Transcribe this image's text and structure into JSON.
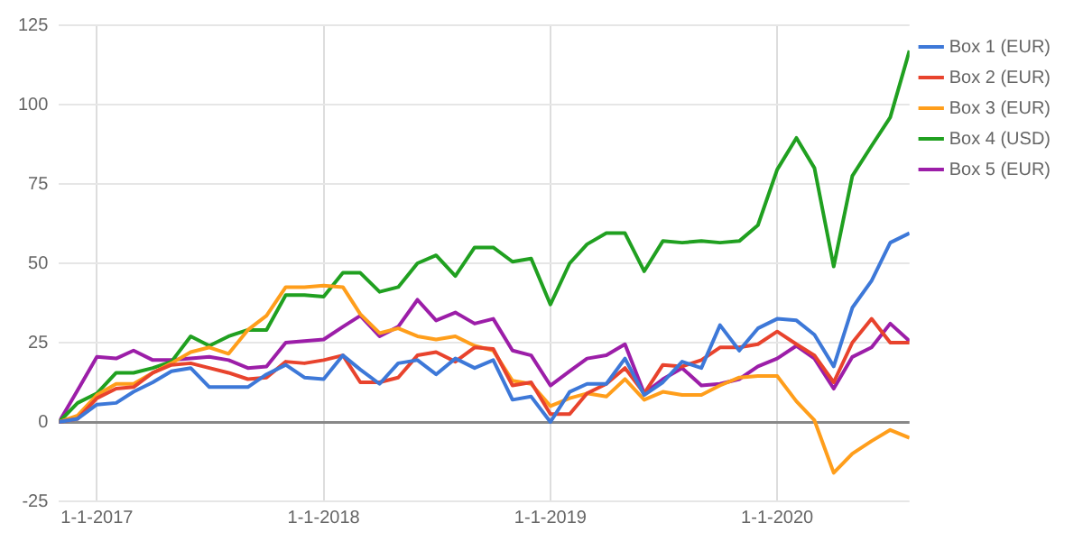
{
  "chart_data": {
    "type": "line",
    "x": [
      "2016-11",
      "2016-12",
      "2017-01",
      "2017-02",
      "2017-03",
      "2017-04",
      "2017-05",
      "2017-06",
      "2017-07",
      "2017-08",
      "2017-09",
      "2017-10",
      "2017-11",
      "2017-12",
      "2018-01",
      "2018-02",
      "2018-03",
      "2018-04",
      "2018-05",
      "2018-06",
      "2018-07",
      "2018-08",
      "2018-09",
      "2018-10",
      "2018-11",
      "2018-12",
      "2019-01",
      "2019-02",
      "2019-03",
      "2019-04",
      "2019-05",
      "2019-06",
      "2019-07",
      "2019-08",
      "2019-09",
      "2019-10",
      "2019-11",
      "2019-12",
      "2020-01",
      "2020-02",
      "2020-03",
      "2020-04",
      "2020-05",
      "2020-06",
      "2020-07",
      "2020-08"
    ],
    "series": [
      {
        "name": "Box 1 (EUR)",
        "color": "#3d78d8",
        "values": [
          0,
          1,
          5.5,
          6,
          9.5,
          12.5,
          16,
          17,
          11,
          11,
          11,
          15,
          18,
          14,
          13.5,
          21,
          16.5,
          12,
          18.5,
          19.5,
          15,
          20,
          17,
          19.5,
          7,
          8,
          0,
          9.5,
          12,
          12,
          20,
          8.5,
          12.5,
          19,
          17,
          30.5,
          22.5,
          29.5,
          32.5,
          32,
          27.5,
          17.5,
          36,
          44.5,
          56.5,
          59.5
        ]
      },
      {
        "name": "Box 2 (EUR)",
        "color": "#e8432d",
        "values": [
          0,
          1,
          7.5,
          10.5,
          11,
          15.5,
          18,
          18.5,
          17,
          15.5,
          13.5,
          14,
          19,
          18.5,
          19.5,
          21,
          12.5,
          12.5,
          14,
          21,
          22,
          19,
          23.5,
          23,
          11.5,
          12.5,
          2.5,
          2.5,
          9,
          12,
          17,
          9,
          18,
          17.5,
          19.5,
          23.5,
          23.5,
          24.5,
          28.5,
          24.5,
          21,
          12.5,
          25,
          32.5,
          25,
          25
        ]
      },
      {
        "name": "Box 3 (EUR)",
        "color": "#ff9e1b",
        "values": [
          0,
          2,
          8.5,
          12,
          12,
          15.5,
          18.5,
          22,
          23.5,
          21.5,
          29,
          33.5,
          42.5,
          42.5,
          43,
          42.5,
          34,
          28,
          29.5,
          27,
          26,
          27,
          24,
          22.5,
          13,
          12,
          5,
          7.5,
          9,
          8,
          13.5,
          7,
          9.5,
          8.5,
          8.5,
          11.5,
          14,
          14.5,
          14.5,
          6.5,
          0.5,
          -16,
          -10,
          -6,
          -2.5,
          -5
        ]
      },
      {
        "name": "Box 4 (USD)",
        "color": "#20a020",
        "values": [
          0,
          6,
          9,
          15.5,
          15.5,
          17,
          19,
          27,
          24,
          27,
          29,
          29,
          40,
          40,
          39.5,
          47,
          47,
          41,
          42.5,
          50,
          52.5,
          46,
          55,
          55,
          50.5,
          51.5,
          37,
          50,
          56,
          59.5,
          59.5,
          47.5,
          57,
          56.5,
          57,
          56.5,
          57,
          62,
          79.5,
          89.5,
          80,
          49,
          77.5,
          87,
          96,
          117
        ]
      },
      {
        "name": "Box 5 (EUR)",
        "color": "#9c1ea8",
        "values": [
          0,
          10,
          20.5,
          20,
          22.5,
          19.5,
          19.5,
          20,
          20.5,
          19.5,
          17,
          17.5,
          25,
          25.5,
          26,
          30,
          33.5,
          27,
          30,
          38.5,
          32,
          34.5,
          31,
          32.5,
          22.5,
          21,
          11.5,
          16,
          20,
          21,
          24.5,
          9,
          13.5,
          17,
          11.5,
          12,
          13.5,
          17.5,
          20,
          24,
          20,
          10.5,
          20.5,
          23.5,
          31,
          25.5
        ]
      }
    ],
    "xlim": [
      "2016-11",
      "2020-08"
    ],
    "xticks": [
      {
        "value": "2017-01",
        "label": "1-1-2017"
      },
      {
        "value": "2018-01",
        "label": "1-1-2018"
      },
      {
        "value": "2019-01",
        "label": "1-1-2019"
      },
      {
        "value": "2020-01",
        "label": "1-1-2020"
      }
    ],
    "ylim": [
      -25,
      125
    ],
    "yticks": [
      -25,
      0,
      25,
      50,
      75,
      100,
      125
    ],
    "grid": true,
    "legend": "top right",
    "marker": "none",
    "line_style": "solid"
  }
}
